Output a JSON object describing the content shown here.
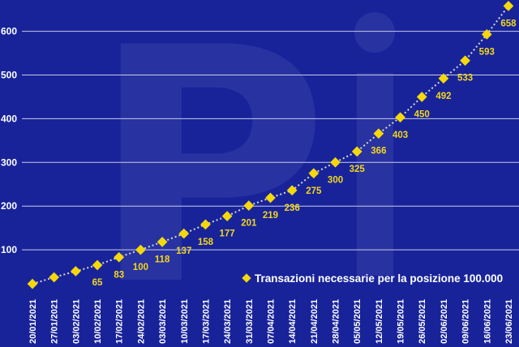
{
  "chart_data": {
    "type": "line",
    "title": "",
    "xlabel": "",
    "ylabel": "",
    "ylim": [
      0,
      672
    ],
    "yticks": [
      100,
      200,
      300,
      400,
      500,
      600
    ],
    "grid": true,
    "legend_position": "bottom-right",
    "categories": [
      "20/01/2021",
      "27/01/2021",
      "03/02/2021",
      "10/02/2021",
      "17/02/2021",
      "24/02/2021",
      "03/03/2021",
      "10/03/2021",
      "17/03/2021",
      "24/03/2021",
      "31/03/2021",
      "07/04/2021",
      "14/04/2021",
      "21/04/2021",
      "28/04/2021",
      "05/05/2021",
      "12/05/2021",
      "19/05/2021",
      "26/05/2021",
      "02/06/2021",
      "09/06/2021",
      "16/06/2021",
      "23/06/2021"
    ],
    "series": [
      {
        "name": "Transazioni necessarie per la posizione 100.000",
        "values": [
          22,
          37,
          51,
          65,
          83,
          100,
          118,
          137,
          158,
          177,
          201,
          219,
          236,
          275,
          300,
          325,
          366,
          403,
          450,
          492,
          533,
          593,
          658
        ],
        "labeled": [
          false,
          false,
          false,
          true,
          true,
          true,
          true,
          true,
          true,
          true,
          true,
          true,
          true,
          true,
          true,
          true,
          true,
          true,
          true,
          true,
          true,
          true,
          true
        ],
        "color": "#f5d80c",
        "line_color": "#d8d8c8"
      }
    ]
  },
  "watermark": "Pi",
  "colors": {
    "background": "#18239a",
    "grid": "#c9cce8"
  }
}
